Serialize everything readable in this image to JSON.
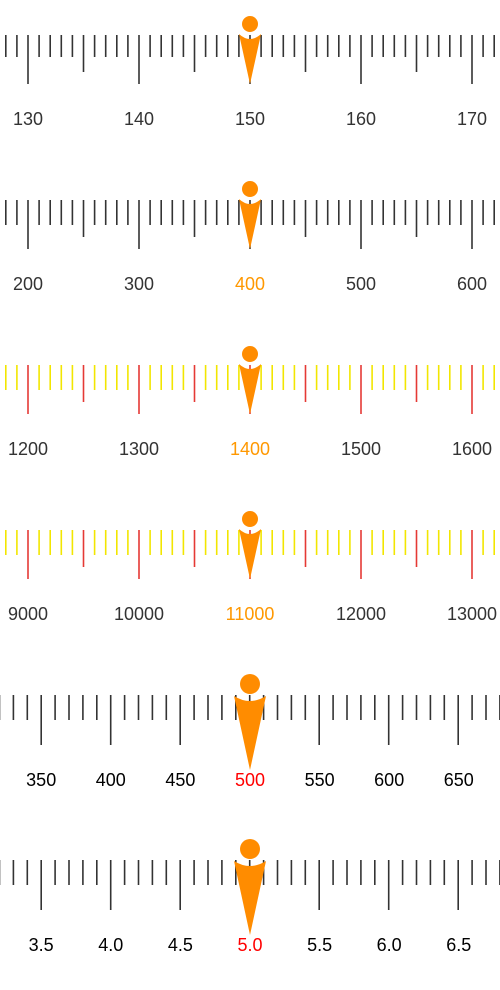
{
  "screen": {
    "title": ""
  },
  "rulers": [
    {
      "id": "ruler-1",
      "labels": [
        "130",
        "140",
        "150",
        "160",
        "170"
      ],
      "selected_value": "150",
      "highlight_selected_label": false,
      "colors": {
        "tick": "#333333",
        "major_tick": "#333333",
        "label": "#333333",
        "selected_label": "#333333",
        "indicator": "#FF8C00"
      }
    },
    {
      "id": "ruler-2",
      "labels": [
        "200",
        "300",
        "400",
        "500",
        "600"
      ],
      "selected_value": "400",
      "highlight_selected_label": true,
      "colors": {
        "tick": "#333333",
        "major_tick": "#333333",
        "label": "#333333",
        "selected_label": "#FF9800",
        "indicator": "#FF8C00"
      }
    },
    {
      "id": "ruler-3",
      "labels": [
        "1200",
        "1300",
        "1400",
        "1500",
        "1600"
      ],
      "selected_value": "1400",
      "highlight_selected_label": true,
      "colors": {
        "tick": "#F2E600",
        "major_tick": "#E53935",
        "label": "#333333",
        "selected_label": "#FF9800",
        "indicator": "#FF8C00"
      }
    },
    {
      "id": "ruler-4",
      "labels": [
        "9000",
        "10000",
        "11000",
        "12000",
        "13000"
      ],
      "selected_value": "11000",
      "highlight_selected_label": true,
      "colors": {
        "tick": "#F2E600",
        "major_tick": "#E53935",
        "label": "#333333",
        "selected_label": "#FF9800",
        "indicator": "#FF8C00"
      }
    },
    {
      "id": "ruler-5",
      "labels": [
        "350",
        "400",
        "450",
        "500",
        "550",
        "600",
        "650"
      ],
      "selected_value": "500",
      "highlight_selected_label": true,
      "colors": {
        "tick": "#333333",
        "major_tick": "#333333",
        "label": "#000000",
        "selected_label": "#FF0000",
        "indicator": "#FF8C00"
      }
    },
    {
      "id": "ruler-6",
      "labels": [
        "3.5",
        "4.0",
        "4.5",
        "5.0",
        "5.5",
        "6.0",
        "6.5"
      ],
      "selected_value": "5.0",
      "highlight_selected_label": true,
      "colors": {
        "tick": "#333333",
        "major_tick": "#333333",
        "label": "#000000",
        "selected_label": "#FF0000",
        "indicator": "#FF8C00"
      }
    }
  ]
}
